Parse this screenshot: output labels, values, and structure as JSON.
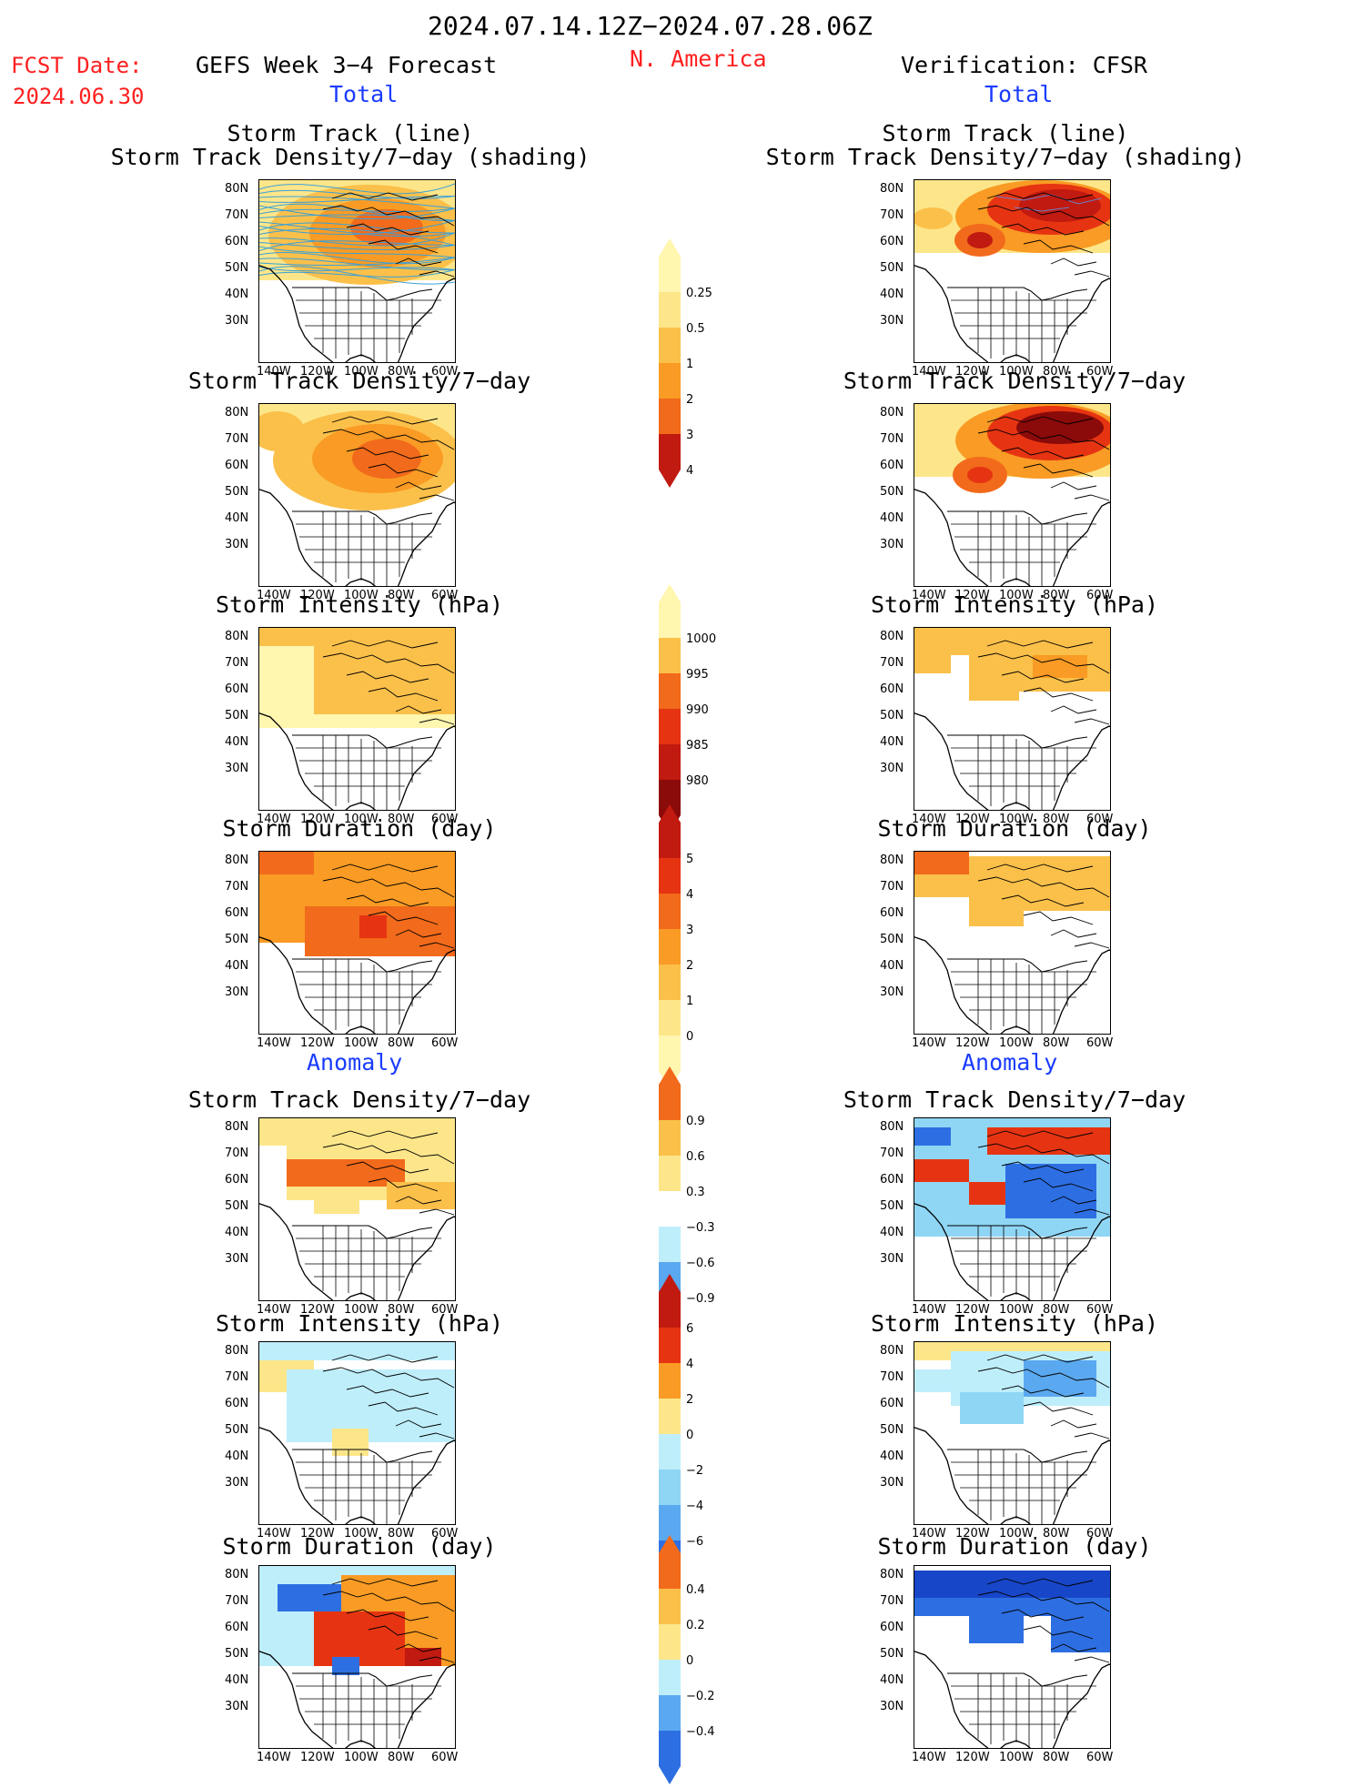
{
  "header": {
    "date_range": "2024.07.14.12Z−2024.07.28.06Z",
    "fcst_label": "FCST Date:",
    "fcst_date": "2024.06.30",
    "left_title": "GEFS Week 3−4 Forecast",
    "region": "N. America",
    "right_title": "Verification: CFSR",
    "total_label_left": "Total",
    "total_label_right": "Total",
    "anomaly_label_left": "Anomaly",
    "anomaly_label_right": "Anomaly"
  },
  "axes": {
    "lat_labels": [
      "80N",
      "70N",
      "60N",
      "50N",
      "40N",
      "30N"
    ],
    "lon_labels": [
      "140W",
      "120W",
      "100W",
      "80W",
      "60W"
    ]
  },
  "panel_titles": {
    "track_line": "Storm Track (line)",
    "track_shading": "Storm Track Density/7−day (shading)",
    "density": "Storm Track Density/7−day",
    "intensity": "Storm Intensity (hPa)",
    "duration": "Storm Duration (day)"
  },
  "colors": {
    "y1": "#fff6b0",
    "y2": "#fde68a",
    "o1": "#fbc04a",
    "o2": "#f99b24",
    "o3": "#f26a1b",
    "r1": "#e63412",
    "r2": "#c11a10",
    "r3": "#8b0a0a",
    "b1": "#bfeefb",
    "b2": "#8fd6f5",
    "b3": "#5aa8ef",
    "b4": "#2d6fe2",
    "b5": "#1846c9",
    "track_line": "#3aa0d8"
  },
  "chart_data": [
    {
      "type": "heatmap",
      "title": "Storm Track Density/7−day (shading)",
      "subtitle": "Storm Track (line)",
      "colorbar_levels": [
        "0.25",
        "0.5",
        "1",
        "2",
        "3",
        "4"
      ]
    },
    {
      "type": "heatmap",
      "title": "Storm Intensity (hPa)",
      "colorbar_levels": [
        "1000",
        "995",
        "990",
        "985",
        "980"
      ]
    },
    {
      "type": "heatmap",
      "title": "Storm Duration (day)",
      "colorbar_levels": [
        "5",
        "4",
        "3",
        "2",
        "1",
        "0"
      ]
    },
    {
      "type": "heatmap",
      "title": "Storm Track Density/7−day",
      "colorbar_levels": [
        "0.9",
        "0.6",
        "0.3",
        "−0.3",
        "−0.6",
        "−0.9"
      ]
    },
    {
      "type": "heatmap",
      "title": "Storm Intensity (hPa)",
      "colorbar_levels": [
        "6",
        "4",
        "2",
        "0",
        "−2",
        "−4",
        "−6"
      ]
    },
    {
      "type": "heatmap",
      "title": "Storm Duration (day)",
      "colorbar_levels": [
        "0.4",
        "0.2",
        "0",
        "−0.2",
        "−0.4"
      ]
    }
  ]
}
